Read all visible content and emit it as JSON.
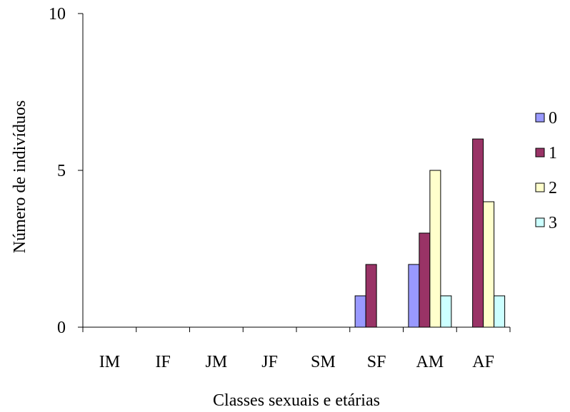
{
  "chart_data": {
    "type": "bar",
    "categories": [
      "IM",
      "IF",
      "JM",
      "JF",
      "SM",
      "SF",
      "AM",
      "AF"
    ],
    "series": [
      {
        "name": "0",
        "color": "#9999FF",
        "values": [
          0,
          0,
          0,
          0,
          0,
          1,
          2,
          0
        ]
      },
      {
        "name": "1",
        "color": "#993366",
        "values": [
          0,
          0,
          0,
          0,
          0,
          2,
          3,
          6
        ]
      },
      {
        "name": "2",
        "color": "#FFFFCC",
        "values": [
          0,
          0,
          0,
          0,
          0,
          0,
          5,
          4
        ]
      },
      {
        "name": "3",
        "color": "#CCFFFF",
        "values": [
          0,
          0,
          0,
          0,
          0,
          0,
          1,
          1
        ]
      }
    ],
    "xlabel": "Classes sexuais e etárias",
    "ylabel": "Número de indivíduos",
    "ylim": [
      0,
      10
    ],
    "yticks": [
      0,
      5,
      10
    ],
    "grid": false,
    "legend": "right"
  }
}
